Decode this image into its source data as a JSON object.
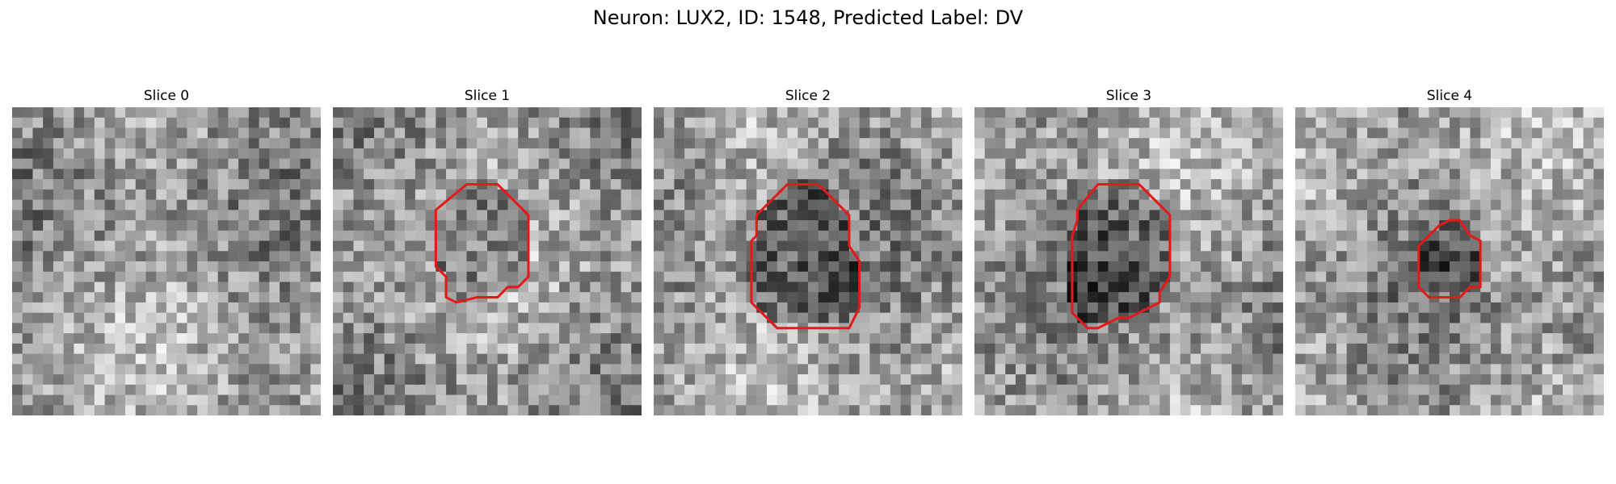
{
  "figure": {
    "title": "Neuron: LUX2, ID: 1548, Predicted Label: DV",
    "contour_color": "#e61919",
    "grid_size": 30,
    "panels": [
      {
        "title": "Slice 0",
        "seed": 11,
        "contour": null
      },
      {
        "title": "Slice 1",
        "seed": 23,
        "contour": [
          [
            13,
            7.5
          ],
          [
            16,
            7.5
          ],
          [
            19,
            10.5
          ],
          [
            19,
            16.5
          ],
          [
            18,
            17.5
          ],
          [
            17,
            17.5
          ],
          [
            16,
            18.5
          ],
          [
            14,
            18.5
          ],
          [
            12,
            19
          ],
          [
            11,
            18.5
          ],
          [
            11,
            16.5
          ],
          [
            10,
            15.5
          ],
          [
            10,
            10
          ]
        ]
      },
      {
        "title": "Slice 2",
        "seed": 37,
        "contour": [
          [
            13,
            7.5
          ],
          [
            16,
            7.5
          ],
          [
            19,
            10.5
          ],
          [
            19,
            13.5
          ],
          [
            20,
            15
          ],
          [
            20,
            19.5
          ],
          [
            19,
            21.5
          ],
          [
            12,
            21.5
          ],
          [
            10,
            19.5
          ],
          [
            9.5,
            19
          ],
          [
            9.5,
            13
          ],
          [
            10,
            12.5
          ],
          [
            10,
            10.5
          ]
        ]
      },
      {
        "title": "Slice 3",
        "seed": 53,
        "contour": [
          [
            12,
            7.5
          ],
          [
            16,
            7.5
          ],
          [
            19,
            10.5
          ],
          [
            19,
            16.5
          ],
          [
            18,
            18
          ],
          [
            18,
            19
          ],
          [
            17,
            19.5
          ],
          [
            16,
            20
          ],
          [
            15,
            20.5
          ],
          [
            14,
            20.5
          ],
          [
            13,
            21
          ],
          [
            12,
            21.5
          ],
          [
            11,
            21.5
          ],
          [
            9.5,
            20
          ],
          [
            9.5,
            12.5
          ],
          [
            10,
            11
          ],
          [
            10,
            10
          ]
        ]
      },
      {
        "title": "Slice 4",
        "seed": 71,
        "contour": [
          [
            14,
            11.5
          ],
          [
            15,
            11
          ],
          [
            16,
            11
          ],
          [
            17,
            12.5
          ],
          [
            18,
            13
          ],
          [
            18,
            17.5
          ],
          [
            17,
            17.5
          ],
          [
            16,
            18.5
          ],
          [
            13,
            18.5
          ],
          [
            12,
            17.5
          ],
          [
            12,
            13.5
          ]
        ]
      }
    ]
  }
}
